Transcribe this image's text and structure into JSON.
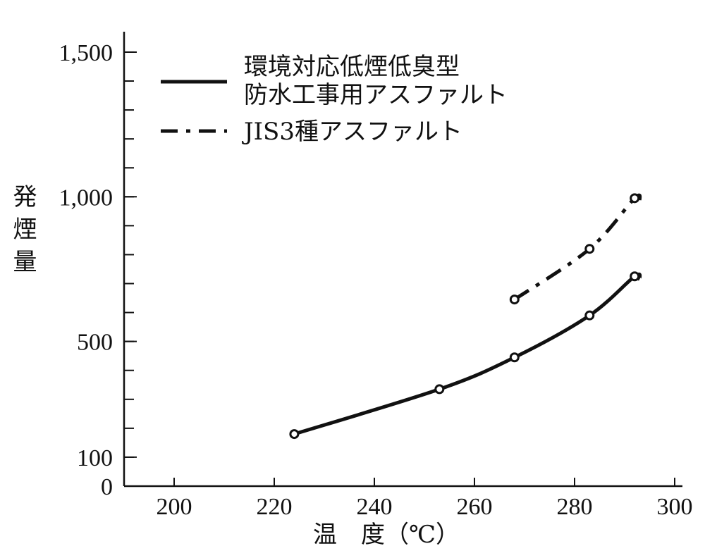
{
  "chart_data": {
    "type": "line",
    "xlabel": "温　度（℃）",
    "ylabel": "発煙量",
    "xlim": [
      190,
      300
    ],
    "ylim": [
      0,
      1500
    ],
    "x_ticks": [
      "200",
      "220",
      "240",
      "260",
      "280",
      "300"
    ],
    "x_tick_values": [
      200,
      220,
      240,
      260,
      280,
      300
    ],
    "y_ticks": [
      "0",
      "100",
      "500",
      "1,000",
      "1,500"
    ],
    "y_tick_values": [
      0,
      100,
      500,
      1000,
      1500
    ],
    "grid": false,
    "legend_position": "top-right",
    "series": [
      {
        "name": "環境対応低煙低臭型防水工事用アスファルト",
        "legend_lines": [
          "環境対応低煙低臭型",
          "防水工事用アスファルト"
        ],
        "line_style": "solid",
        "color": "#111111",
        "points": [
          {
            "x": 224,
            "y": 180
          },
          {
            "x": 253,
            "y": 335
          },
          {
            "x": 268,
            "y": 445
          },
          {
            "x": 283,
            "y": 590
          },
          {
            "x": 292,
            "y": 725
          }
        ],
        "curve_end": {
          "x": 293,
          "y": 715
        }
      },
      {
        "name": "JIS3種アスファルト",
        "legend_lines": [
          "JIS3種アスファルト"
        ],
        "line_style": "dash-dot",
        "color": "#111111",
        "points": [
          {
            "x": 268,
            "y": 645
          },
          {
            "x": 283,
            "y": 820
          },
          {
            "x": 292,
            "y": 995
          }
        ],
        "curve_end": {
          "x": 293,
          "y": 985
        }
      }
    ]
  }
}
